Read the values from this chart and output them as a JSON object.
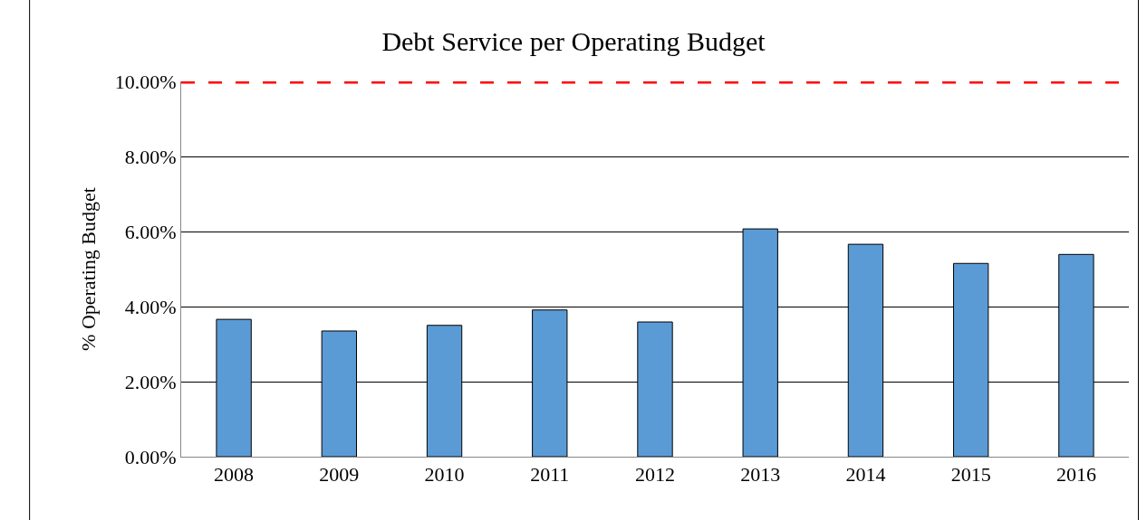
{
  "chart_data": {
    "type": "bar",
    "title": "Debt Service per Operating Budget",
    "ylabel": "% Operating Budget",
    "categories": [
      "2008",
      "2009",
      "2010",
      "2011",
      "2012",
      "2013",
      "2014",
      "2015",
      "2016"
    ],
    "values": [
      3.66,
      3.35,
      3.5,
      3.91,
      3.59,
      6.07,
      5.66,
      5.15,
      5.39
    ],
    "color": "#5b9bd5",
    "ylim": [
      0,
      10
    ],
    "yticks": [
      {
        "value": 0,
        "label": "0.00%"
      },
      {
        "value": 2,
        "label": "2.00%"
      },
      {
        "value": 4,
        "label": "4.00%"
      },
      {
        "value": 6,
        "label": "6.00%"
      },
      {
        "value": 8,
        "label": "8.00%"
      },
      {
        "value": 10,
        "label": "10.00%"
      }
    ],
    "grid": "y",
    "ref_lines": [
      {
        "axis": "y",
        "value": 10,
        "color": "#ff0000",
        "line_style": "dashed"
      }
    ]
  }
}
